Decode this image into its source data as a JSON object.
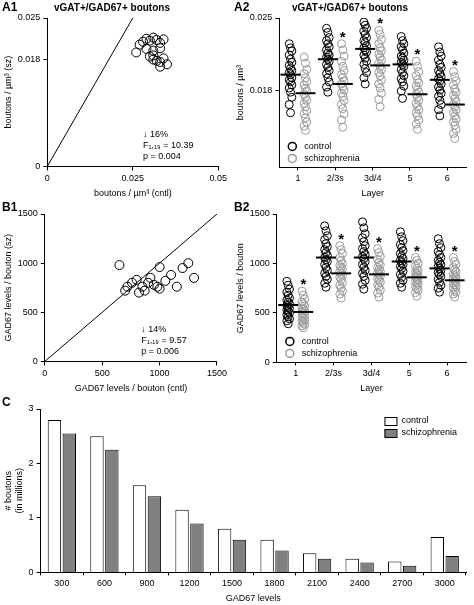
{
  "chart_data": [
    {
      "type": "scatter",
      "panel_label": "A1",
      "title": "vGAT+/GAD67+ boutons",
      "x_label": "boutons / µm³ (cntl)",
      "y_label": "boutons / µm³ (sz)",
      "x": [
        0.027,
        0.028,
        0.029,
        0.03,
        0.031,
        0.032,
        0.033,
        0.034,
        0.029,
        0.031,
        0.033,
        0.026,
        0.03,
        0.031,
        0.032,
        0.033,
        0.034,
        0.035,
        0.033,
        0.031
      ],
      "y": [
        0.0205,
        0.021,
        0.0215,
        0.0212,
        0.0217,
        0.0213,
        0.0208,
        0.0214,
        0.0198,
        0.0195,
        0.0199,
        0.0192,
        0.0185,
        0.018,
        0.0178,
        0.0176,
        0.0182,
        0.0172,
        0.0168,
        0.0187
      ],
      "color": "#000000",
      "marker": "circle",
      "reference_line": {
        "x": [
          0,
          0.025
        ],
        "y": [
          0,
          0.025
        ]
      },
      "annotations": [
        "↓ 16%",
        "F₁,₁₉ = 10.39",
        "p = 0.004"
      ],
      "xlim": [
        0,
        0.05
      ],
      "xticks": [
        0,
        0.025,
        0.05
      ],
      "ylim": [
        0,
        0.025
      ],
      "yticks": [
        0,
        0.018,
        0.025
      ],
      "grid": false
    },
    {
      "type": "strip",
      "panel_label": "A2",
      "title": "vGAT+/GAD67+ boutons",
      "x_label": "Layer",
      "y_label": "boutons / µm³",
      "categories": [
        "1",
        "2/3s",
        "3d/4",
        "5",
        "6"
      ],
      "series": [
        {
          "name": "control",
          "color": "#000000",
          "marker": "circle",
          "values": [
            [
              0.0225,
              0.0221,
              0.0218,
              0.0214,
              0.021,
              0.0207,
              0.0204,
              0.0201,
              0.0199,
              0.0197,
              0.0195,
              0.0192,
              0.019,
              0.0188,
              0.0185,
              0.0182,
              0.0178,
              0.0173,
              0.0166,
              0.0158
            ],
            [
              0.024,
              0.0236,
              0.0231,
              0.0228,
              0.0225,
              0.0222,
              0.0219,
              0.0216,
              0.0214,
              0.0212,
              0.021,
              0.0208,
              0.0205,
              0.0202,
              0.0199,
              0.0196,
              0.0192,
              0.0188,
              0.0183,
              0.0178
            ],
            [
              0.0246,
              0.0243,
              0.024,
              0.0237,
              0.0234,
              0.0231,
              0.0228,
              0.0226,
              0.0223,
              0.0221,
              0.0219,
              0.0217,
              0.0214,
              0.0211,
              0.0208,
              0.0205,
              0.0201,
              0.0197,
              0.0192,
              0.0186
            ],
            [
              0.0232,
              0.0228,
              0.0225,
              0.0222,
              0.0219,
              0.0216,
              0.0213,
              0.0211,
              0.0209,
              0.0207,
              0.0205,
              0.0203,
              0.02,
              0.0197,
              0.0194,
              0.0191,
              0.0188,
              0.0184,
              0.0179,
              0.0172
            ],
            [
              0.0222,
              0.0217,
              0.0213,
              0.0209,
              0.0205,
              0.0202,
              0.0199,
              0.0196,
              0.0193,
              0.0191,
              0.0189,
              0.0186,
              0.0183,
              0.018,
              0.0177,
              0.0174,
              0.017,
              0.0166,
              0.0161,
              0.0155
            ]
          ],
          "means": [
            0.0195,
            0.021,
            0.022,
            0.0205,
            0.019
          ]
        },
        {
          "name": "schizophrenia",
          "color": "#999999",
          "marker": "circle",
          "values": [
            [
              0.0212,
              0.0206,
              0.02,
              0.0196,
              0.0192,
              0.0188,
              0.0185,
              0.0182,
              0.0179,
              0.0176,
              0.0173,
              0.017,
              0.0167,
              0.0164,
              0.016,
              0.0157,
              0.0153,
              0.0149,
              0.0145,
              0.0141
            ],
            [
              0.0225,
              0.0219,
              0.0213,
              0.0208,
              0.0203,
              0.0199,
              0.0195,
              0.0192,
              0.0189,
              0.0186,
              0.0183,
              0.018,
              0.0177,
              0.0174,
              0.017,
              0.0166,
              0.0162,
              0.0157,
              0.0151,
              0.0144
            ],
            [
              0.0238,
              0.0234,
              0.0229,
              0.0225,
              0.0221,
              0.0218,
              0.0215,
              0.0212,
              0.0209,
              0.0206,
              0.0203,
              0.02,
              0.0197,
              0.0194,
              0.019,
              0.0186,
              0.0182,
              0.0177,
              0.0171,
              0.0164
            ],
            [
              0.0208,
              0.0203,
              0.0198,
              0.0194,
              0.019,
              0.0187,
              0.0184,
              0.0181,
              0.0178,
              0.0176,
              0.0173,
              0.017,
              0.0167,
              0.0164,
              0.0161,
              0.0158,
              0.0155,
              0.0151,
              0.0147,
              0.0142
            ],
            [
              0.0198,
              0.0193,
              0.0189,
              0.0185,
              0.0181,
              0.0178,
              0.0175,
              0.0172,
              0.0169,
              0.0166,
              0.0164,
              0.0161,
              0.0158,
              0.0155,
              0.0152,
              0.0149,
              0.0146,
              0.0142,
              0.0138,
              0.0133
            ]
          ],
          "means": [
            0.0177,
            0.0186,
            0.0204,
            0.0176,
            0.0166
          ]
        }
      ],
      "significance": [
        null,
        "*",
        "*",
        "*",
        "*"
      ],
      "ylim": [
        0.0105,
        0.025
      ],
      "yticks": [
        0.018,
        0.025
      ],
      "legend": "bottom left",
      "grid": false
    },
    {
      "type": "scatter",
      "panel_label": "B1",
      "x_label": "GAD67 levels / bouton (cntl)",
      "y_label": "GAD67 levels / bouton (sz)",
      "x": [
        650,
        700,
        720,
        760,
        800,
        820,
        850,
        870,
        900,
        920,
        950,
        980,
        1000,
        1050,
        1100,
        1150,
        1200,
        1250,
        1300,
        1000
      ],
      "y": [
        980,
        720,
        760,
        800,
        830,
        700,
        760,
        720,
        800,
        850,
        780,
        760,
        740,
        820,
        880,
        760,
        950,
        1000,
        850,
        960
      ],
      "color": "#000000",
      "marker": "circle",
      "reference_line": {
        "x": [
          0,
          1500
        ],
        "y": [
          0,
          1500
        ]
      },
      "annotations": [
        "↓ 14%",
        "F₁,₁₉ = 9.57",
        "p = 0.006"
      ],
      "xlim": [
        0,
        1500
      ],
      "xticks": [
        0,
        500,
        1000,
        1500
      ],
      "ylim": [
        0,
        1500
      ],
      "yticks": [
        0,
        500,
        1000,
        1500
      ],
      "grid": false
    },
    {
      "type": "strip",
      "panel_label": "B2",
      "x_label": "Layer",
      "y_label": "GAD67 levels / bouton",
      "categories": [
        "1",
        "2/3s",
        "3d/4",
        "5",
        "6"
      ],
      "series": [
        {
          "name": "control",
          "color": "#000000",
          "marker": "circle",
          "values": [
            [
              820,
              780,
              740,
              710,
              680,
              650,
              630,
              610,
              590,
              575,
              560,
              545,
              530,
              515,
              500,
              480,
              460,
              440,
              420,
              390
            ],
            [
              1380,
              1330,
              1280,
              1240,
              1200,
              1170,
              1140,
              1110,
              1080,
              1060,
              1040,
              1020,
              990,
              960,
              930,
              900,
              870,
              840,
              800,
              760
            ],
            [
              1420,
              1360,
              1300,
              1260,
              1220,
              1180,
              1150,
              1120,
              1090,
              1070,
              1050,
              1020,
              990,
              960,
              930,
              900,
              870,
              830,
              790,
              740
            ],
            [
              1320,
              1270,
              1230,
              1190,
              1160,
              1130,
              1100,
              1070,
              1050,
              1030,
              1010,
              990,
              970,
              950,
              920,
              890,
              860,
              830,
              800,
              760
            ],
            [
              1250,
              1200,
              1160,
              1120,
              1090,
              1060,
              1030,
              1010,
              990,
              970,
              950,
              930,
              910,
              890,
              870,
              840,
              810,
              780,
              750,
              710
            ]
          ],
          "means": [
            580,
            1060,
            1060,
            1020,
            950
          ]
        },
        {
          "name": "schizophrenia",
          "color": "#999999",
          "marker": "circle",
          "values": [
            [
              720,
              680,
              640,
              610,
              590,
              570,
              550,
              535,
              520,
              505,
              490,
              475,
              460,
              445,
              430,
              415,
              400,
              385,
              370,
              350
            ],
            [
              1180,
              1140,
              1100,
              1060,
              1030,
              1000,
              980,
              960,
              940,
              920,
              900,
              880,
              860,
              840,
              810,
              780,
              750,
              720,
              690,
              650
            ],
            [
              1150,
              1110,
              1070,
              1040,
              1010,
              985,
              960,
              940,
              920,
              905,
              890,
              870,
              850,
              830,
              810,
              785,
              760,
              730,
              700,
              660
            ],
            [
              1060,
              1030,
              1000,
              975,
              950,
              930,
              910,
              895,
              880,
              865,
              850,
              835,
              820,
              805,
              790,
              770,
              750,
              730,
              705,
              670
            ],
            [
              1060,
              1020,
              990,
              960,
              935,
              915,
              895,
              875,
              860,
              845,
              830,
              815,
              800,
              785,
              770,
              750,
              730,
              710,
              690,
              660
            ]
          ],
          "means": [
            510,
            900,
            890,
            860,
            830
          ]
        }
      ],
      "significance": [
        "*",
        "*",
        "*",
        "*",
        "*"
      ],
      "ylim": [
        0,
        1500
      ],
      "yticks": [
        0,
        500,
        1000,
        1500
      ],
      "legend": "bottom left",
      "grid": false
    },
    {
      "type": "bar",
      "panel_label": "C",
      "x_label": "GAD67 levels",
      "y_label": [
        "# boutons",
        "(in millions)"
      ],
      "categories": [
        "300",
        "600",
        "900",
        "1200",
        "1500",
        "1800",
        "2100",
        "2400",
        "2700",
        "3000"
      ],
      "series": [
        {
          "name": "control",
          "color": "#ffffff",
          "values": [
            2.8,
            2.5,
            1.6,
            1.15,
            0.8,
            0.6,
            0.35,
            0.25,
            0.2,
            0.65
          ]
        },
        {
          "name": "schizophrenia",
          "color": "#808080",
          "values": [
            2.55,
            2.25,
            1.4,
            0.9,
            0.6,
            0.4,
            0.25,
            0.18,
            0.12,
            0.3
          ]
        }
      ],
      "ylim": [
        0,
        3
      ],
      "yticks": [
        0,
        1,
        2,
        3
      ],
      "legend": "top right",
      "grid": false
    }
  ]
}
